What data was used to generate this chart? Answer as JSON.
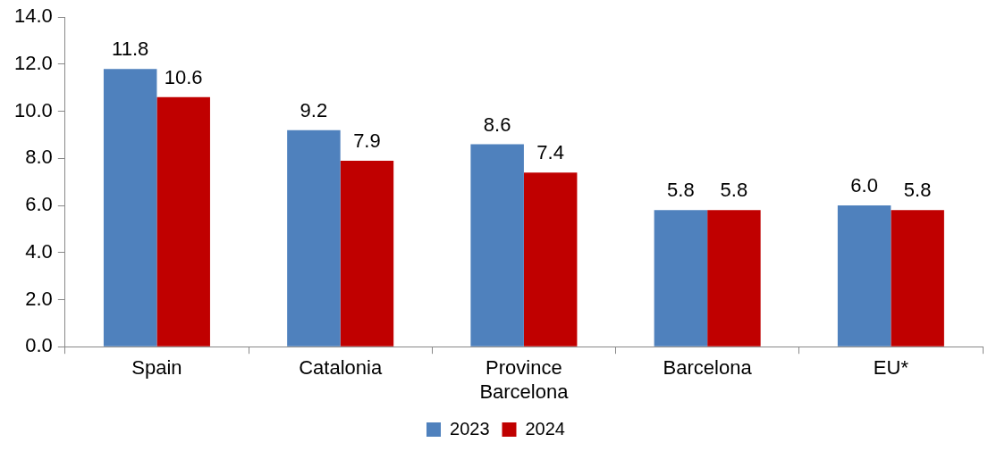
{
  "chart_data": {
    "type": "bar",
    "categories": [
      "Spain",
      "Catalonia",
      "Province Barcelona",
      "Barcelona",
      "EU*"
    ],
    "series": [
      {
        "name": "2023",
        "color": "#4f81bd",
        "values": [
          11.8,
          9.2,
          8.6,
          5.8,
          6.0
        ],
        "value_labels": [
          "11.8",
          "9.2",
          "8.6",
          "5.8",
          "6.0"
        ]
      },
      {
        "name": "2024",
        "color": "#c00000",
        "values": [
          10.6,
          7.9,
          7.4,
          5.8,
          5.8
        ],
        "value_labels": [
          "10.6",
          "7.9",
          "7.4",
          "5.8",
          "5.8"
        ]
      }
    ],
    "ylim": [
      0,
      14
    ],
    "yticks": [
      {
        "value": 0,
        "label": "0.0"
      },
      {
        "value": 2,
        "label": "2.0"
      },
      {
        "value": 4,
        "label": "4.0"
      },
      {
        "value": 6,
        "label": "6.0"
      },
      {
        "value": 8,
        "label": "8.0"
      },
      {
        "value": 10,
        "label": "10.0"
      },
      {
        "value": 12,
        "label": "12.0"
      },
      {
        "value": 14,
        "label": "14.0"
      }
    ],
    "grid": false,
    "legend": "bottom"
  }
}
